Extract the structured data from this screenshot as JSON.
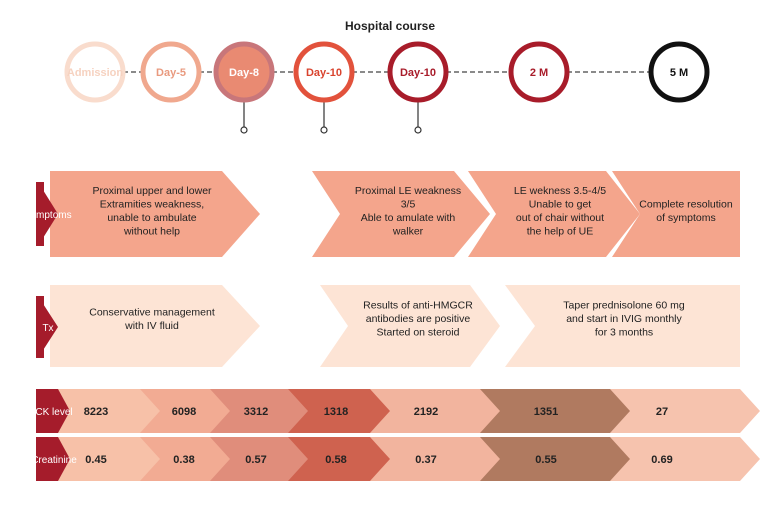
{
  "title": "Hospital course",
  "timeline": [
    {
      "label": "Admission",
      "fill": "#ffffff",
      "stroke": "#f9dccd",
      "text_color": "#f6d2c0",
      "pin": false
    },
    {
      "label": "Day-5",
      "fill": "#ffffff",
      "stroke": "#f0a88e",
      "text_color": "#e99a7f",
      "pin": false
    },
    {
      "label": "Day-8",
      "fill": "#e98a72",
      "stroke": "#c8767a",
      "text_color": "#ffffff",
      "pin": true
    },
    {
      "label": "Day-10",
      "fill": "#ffffff",
      "stroke": "#e2523c",
      "text_color": "#d9432e",
      "pin": true
    },
    {
      "label": "Day-10",
      "fill": "#ffffff",
      "stroke": "#a81c2a",
      "text_color": "#a81c2a",
      "pin": true
    },
    {
      "label": "2 M",
      "fill": "#ffffff",
      "stroke": "#a81c2a",
      "text_color": "#a81c2a",
      "pin": false
    },
    {
      "label": "5 M",
      "fill": "#ffffff",
      "stroke": "#111111",
      "text_color": "#111111",
      "pin": false
    }
  ],
  "symptoms": {
    "label": "Symptoms",
    "boxes": [
      {
        "lines": [
          "Proximal upper and lower",
          "Extramities weakness,",
          "unable to ambulate",
          "without help"
        ]
      },
      {
        "lines": [
          "Proximal LE weakness",
          "3/5",
          "Able to amulate with",
          "walker"
        ]
      },
      {
        "lines": [
          "LE wekness 3.5-4/5",
          "Unable to get",
          "out of chair without",
          "the help of UE"
        ]
      },
      {
        "lines": [
          "Complete resolution",
          "of symptoms"
        ]
      }
    ]
  },
  "tx": {
    "label": "Tx",
    "boxes": [
      {
        "lines": [
          "Conservative management",
          "with IV fluid"
        ]
      },
      {
        "lines": [
          "Results of anti-HMGCR",
          "antibodies are positive",
          "Started on steroid"
        ]
      },
      {
        "lines": [
          "Taper prednisolone 60 mg",
          "and start in IVIG monthly",
          "for 3 months"
        ]
      }
    ]
  },
  "ck": {
    "label": "CK level",
    "values": [
      "8223",
      "6098",
      "3312",
      "1318",
      "2192",
      "1351",
      "27"
    ]
  },
  "creatinine": {
    "label": "Creatinine",
    "values": [
      "0.45",
      "0.38",
      "0.57",
      "0.58",
      "0.37",
      "0.55",
      "0.69"
    ]
  },
  "colors": {
    "dark_red": "#a51c2b",
    "symptom_box": "#f4a58c",
    "tx_box": "#fde4d5",
    "segments": [
      "#f7c1a8",
      "#f2ab93",
      "#e08d7b",
      "#cf624f",
      "#f2b49e",
      "#b07a60",
      "#f6c3ae"
    ],
    "dash": "#444444"
  }
}
